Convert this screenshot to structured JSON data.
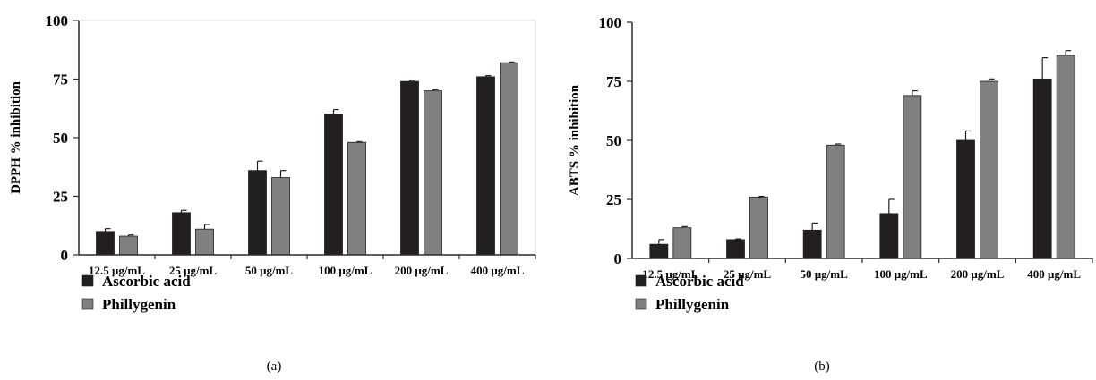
{
  "chart_data": [
    {
      "type": "bar",
      "panel_label": "(a)",
      "ylabel": "DPPH % inhibition",
      "ylim": [
        0,
        100
      ],
      "yticks": [
        "0",
        "25",
        "50",
        "75",
        "100"
      ],
      "categories": [
        "12.5 μg/mL",
        "25 μg/mL",
        "50 μg/mL",
        "100 μg/mL",
        "200 μg/mL",
        "400 μg/mL"
      ],
      "series": [
        {
          "name": "Ascorbic acid",
          "color": "#231f20",
          "values": [
            10,
            18,
            36,
            60,
            74,
            76
          ],
          "errors": [
            1.2,
            1.0,
            4.0,
            2.0,
            0.5,
            0.5
          ]
        },
        {
          "name": "Phillygenin",
          "color": "#808080",
          "values": [
            8,
            11,
            33,
            48,
            70,
            82
          ],
          "errors": [
            0.5,
            2.0,
            3.0,
            0.3,
            0.5,
            0.3
          ]
        }
      ],
      "legend_position": "bottom-left",
      "frame": true
    },
    {
      "type": "bar",
      "panel_label": "(b)",
      "ylabel": "ABTS % inhibition",
      "ylim": [
        0,
        100
      ],
      "yticks": [
        "0",
        "25",
        "50",
        "75",
        "100"
      ],
      "categories": [
        "12.5 μg/mL",
        "25 μg/mL",
        "50 μg/mL",
        "100 μg/mL",
        "200 μg/mL",
        "400 μg/mL"
      ],
      "series": [
        {
          "name": "Ascorbic acid",
          "color": "#231f20",
          "values": [
            6,
            8,
            12,
            19,
            50,
            76
          ],
          "errors": [
            2.0,
            0.3,
            3.0,
            6.0,
            4.0,
            9.0
          ]
        },
        {
          "name": "Phillygenin",
          "color": "#808080",
          "values": [
            13,
            26,
            48,
            69,
            75,
            86
          ],
          "errors": [
            0.5,
            0.3,
            0.5,
            2.0,
            1.0,
            2.0
          ]
        }
      ],
      "legend_position": "bottom-left",
      "frame": false
    }
  ]
}
